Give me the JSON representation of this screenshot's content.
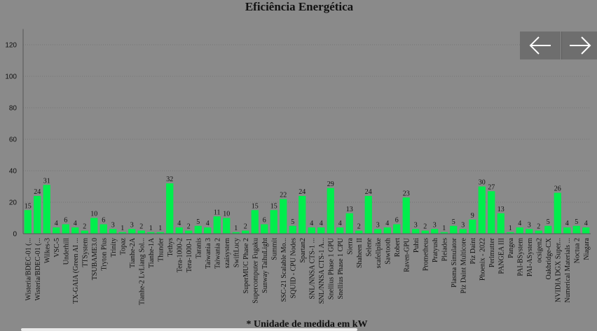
{
  "chart_data": {
    "type": "bar",
    "title": "Eficiência Energética",
    "footnote": "* Unidade de medida em kW",
    "ylim": [
      0,
      130
    ],
    "yticks": [
      0,
      20,
      40,
      60,
      80,
      100,
      120
    ],
    "grid": true,
    "bar_color": "#00ee4c",
    "categories": [
      "Wisteria/BDEC-01 (...",
      "Wisteria/BDEC-01 (...",
      "Wilkes-3",
      "VSC-5",
      "Underhill",
      "TX-GAIA (Green AI ...",
      "TTSystem",
      "TSUBAME3.0",
      "Tryton Plus",
      "Trinity",
      "Topaz",
      "Tianhe-2A",
      "Tianhe-2 LvLiang Sol...",
      "Tianhe-1A",
      "Thunder",
      "Tethys",
      "Tera-1000-2",
      "Tera-1000-1",
      "Taranis",
      "Taiwania 3",
      "Taiwania 2",
      "szaisystem",
      "SwiftLucy",
      "SuperMUC Phase 2",
      "Supercomputer Fugaku",
      "Sunway TaihuLight",
      "Summit",
      "SSC-21 Scalable Mo...",
      "SQUID - CPU Nodes",
      "Spartan2",
      "SNL/NNSA CTS-1 ...",
      "SNL/NNSA CTS-1 A...",
      "Snellius Phase 1 GPU",
      "Snellius Phase 1 CPU",
      "Sierra",
      "Shaheen II",
      "Selene",
      "scafellpike",
      "Sawtooth",
      "Robert",
      "Raven-GPU",
      "Puhti",
      "Prometheus",
      "Pratyush",
      "Pleiades",
      "Plasma Simulator",
      "Piz Daint Multicore",
      "Piz Daint",
      "Phoenix - 2022",
      "Perlmutter",
      "PANGEA III",
      "Pangea",
      "PAI-BSystem",
      "PAI-ASystem",
      "ocsigen2",
      "Oakbridge-CX",
      "NVIDIA DGX Super...",
      "Numerical Materials ...",
      "Noctua 2",
      "Niagara"
    ],
    "values": [
      15,
      24,
      31,
      4,
      6,
      4,
      2,
      10,
      6,
      3,
      1,
      3,
      2,
      1,
      1,
      32,
      4,
      2,
      5,
      4,
      11,
      10,
      1,
      2,
      15,
      6,
      15,
      22,
      5,
      24,
      4,
      4,
      29,
      4,
      13,
      2,
      24,
      3,
      4,
      6,
      23,
      3,
      2,
      3,
      1,
      5,
      3,
      9,
      30,
      27,
      13,
      1,
      4,
      3,
      2,
      5,
      26,
      4,
      5,
      4
    ],
    "labels": [
      "15",
      "24",
      "31",
      "4",
      "6",
      "4",
      "2",
      "10",
      "6",
      "3",
      "1",
      "3",
      "2",
      "1",
      "1",
      "32",
      "4",
      "2",
      "5",
      "4",
      "11",
      "10",
      "1",
      "2",
      "15",
      "6",
      "15",
      "22",
      "5",
      "24",
      "4",
      "4",
      "29",
      "4",
      "13",
      "2",
      "24",
      "3",
      "4",
      "6",
      "23",
      "3",
      "2",
      "3",
      "1",
      "5",
      "3",
      "9",
      "30",
      "27",
      "13",
      "1",
      "4",
      "3",
      "2",
      "5",
      "26",
      "4",
      "5",
      "4"
    ]
  },
  "nav": {
    "prev_icon": "arrow-left-icon",
    "next_icon": "arrow-right-icon"
  }
}
